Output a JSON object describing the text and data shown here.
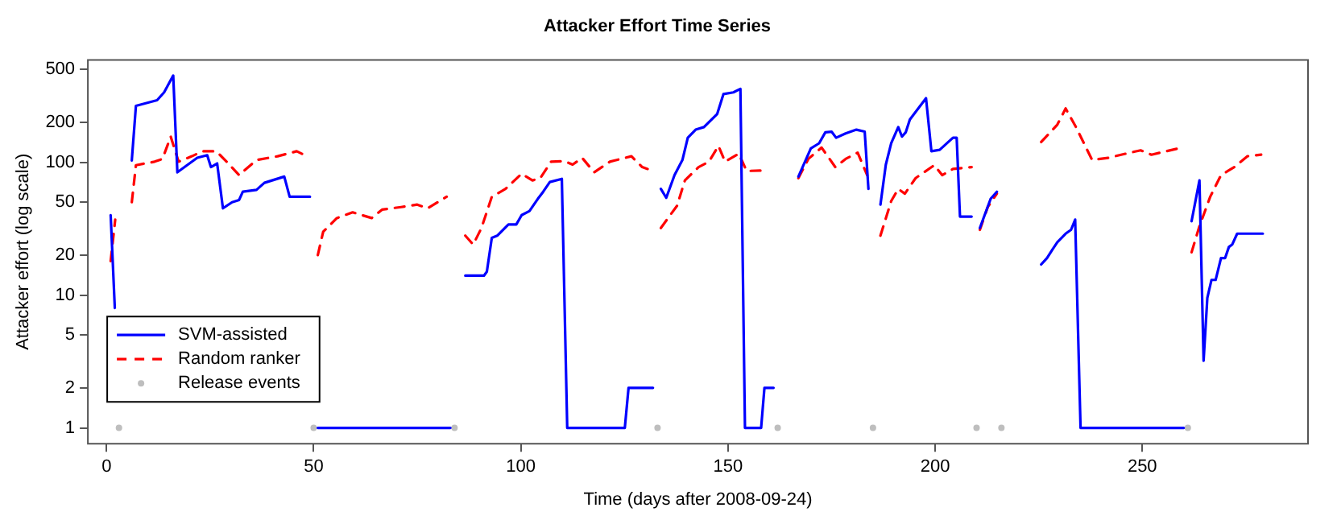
{
  "chart_data": {
    "type": "line",
    "title": "Attacker Effort Time Series",
    "xlabel": "Time (days after 2008-09-24)",
    "ylabel": "Attacker effort (log scale)",
    "log": "y",
    "xlim": [
      -4.5,
      290
    ],
    "xticks": [
      0,
      50,
      100,
      150,
      200,
      250
    ],
    "ylim": [
      0.76,
      590
    ],
    "yticks": [
      1,
      2,
      5,
      10,
      20,
      50,
      100,
      200,
      500
    ],
    "grid": false,
    "legend": "bottom left",
    "series": [
      {
        "name": "SVM-assisted",
        "color": "#0000ff",
        "line_style": "solid",
        "marker": "none",
        "x": [
          1,
          2,
          4,
          6.1,
          7.1,
          12.2,
          13.9,
          16.1,
          17.1,
          21.9,
          24.3,
          25.2,
          26.7,
          28.1,
          30.3,
          32,
          32.9,
          36.2,
          38.1,
          42.9,
          44.2,
          49.1,
          50,
          51,
          83,
          85,
          86.6,
          91.1,
          91.8,
          93,
          94.3,
          97,
          98.9,
          100.2,
          102.1,
          104.1,
          105.4,
          107,
          109.9,
          111.2,
          125.1,
          126,
          131.9,
          133,
          133.8,
          135.1,
          137.1,
          139,
          140.3,
          142.2,
          144.2,
          147.4,
          148.9,
          151.3,
          153,
          154.1,
          158,
          158.8,
          161,
          164,
          167,
          170,
          172,
          173.5,
          175,
          176.1,
          178.4,
          181,
          183,
          183.9,
          185,
          186.8,
          188.1,
          189.4,
          191.1,
          192,
          192.9,
          193.9,
          197.8,
          199.1,
          201.1,
          204.3,
          205.2,
          206,
          208.8,
          209.8,
          210.8,
          213.4,
          214.9,
          220,
          225.6,
          227,
          228.3,
          229.5,
          231.5,
          232.8,
          233.8,
          235.1,
          260,
          261,
          261.9,
          263.8,
          264.8,
          265.7,
          266.7,
          267.7,
          269,
          270,
          270.9,
          271.7,
          272.9,
          279.1
        ],
        "values": [
          40,
          8,
          null,
          103,
          266,
          293,
          336,
          450,
          84,
          108,
          113,
          92,
          98,
          45,
          50,
          52,
          60,
          62,
          70,
          78,
          55,
          55,
          null,
          1,
          1,
          null,
          14,
          14,
          15,
          27,
          28,
          34,
          34,
          40,
          43,
          53,
          60,
          71,
          75,
          1,
          1,
          2,
          2,
          null,
          63,
          54,
          80,
          104,
          153,
          176,
          184,
          231,
          326,
          336,
          357,
          1,
          1,
          2,
          2,
          null,
          78,
          127,
          139,
          168,
          170,
          153,
          165,
          176,
          170,
          63,
          null,
          48,
          96,
          139,
          184,
          156,
          168,
          210,
          304,
          121,
          124,
          153,
          153,
          39,
          39,
          null,
          32,
          53,
          60,
          null,
          17,
          19,
          22,
          25,
          29,
          31,
          37,
          1,
          1,
          null,
          36,
          73,
          3.2,
          9.5,
          13,
          13,
          19,
          19,
          23,
          24,
          29,
          29
        ]
      },
      {
        "name": "Random ranker",
        "color": "#ff0000",
        "line_style": "dashed",
        "marker": "none",
        "x": [
          1,
          2.1,
          4,
          6.1,
          7.1,
          11.6,
          13.5,
          15.5,
          17.4,
          20.6,
          23.2,
          26.5,
          29,
          32,
          36.2,
          41.3,
          45.9,
          48.4,
          50,
          51,
          52.3,
          55.6,
          59.4,
          64,
          66.5,
          71.1,
          75,
          77.5,
          82.1,
          84,
          86.6,
          88.5,
          90.5,
          93,
          96.3,
          100.2,
          102.8,
          104.7,
          107.3,
          110.5,
          112.5,
          114.8,
          117.7,
          121.5,
          126.7,
          129.3,
          130.6,
          132,
          133.8,
          137.7,
          139.6,
          142.9,
          145.4,
          147.7,
          149.3,
          152.6,
          154.5,
          159.7,
          163,
          167,
          169.4,
          172.6,
          175.9,
          178.4,
          181.3,
          183.6,
          185,
          186.8,
          189.4,
          191.1,
          192.7,
          195.3,
          199.8,
          201.7,
          204.3,
          208.8,
          209.8,
          210.8,
          212.7,
          214.9,
          220,
          225.6,
          229.5,
          231.5,
          234,
          237.9,
          241.8,
          247,
          249.6,
          252.2,
          258.6,
          260,
          261.9,
          263.8,
          266.4,
          269,
          272.2,
          275.4,
          278.7
        ],
        "values": [
          18,
          37,
          null,
          50,
          95,
          101,
          106,
          156,
          101,
          111,
          121,
          121,
          101,
          80,
          104,
          111,
          121,
          111,
          null,
          20,
          30,
          38,
          42,
          38,
          44,
          46,
          48,
          45,
          55,
          null,
          28,
          24,
          32,
          55,
          63,
          82,
          73,
          76,
          101,
          102,
          96,
          108,
          84,
          101,
          111,
          92,
          89,
          null,
          32,
          47,
          73,
          92,
          101,
          133,
          101,
          116,
          86,
          87,
          null,
          76,
          106,
          129,
          92,
          106,
          118,
          80,
          null,
          28,
          51,
          63,
          58,
          76,
          95,
          80,
          89,
          92,
          null,
          31,
          46,
          58,
          null,
          142,
          192,
          254,
          184,
          104,
          108,
          118,
          123,
          114,
          127,
          null,
          21,
          33,
          55,
          80,
          92,
          111,
          114
        ]
      },
      {
        "name": "Release events",
        "type": "scatter",
        "color": "#bebebe",
        "marker": "circle",
        "x": [
          3,
          50,
          84,
          133,
          162,
          185,
          210,
          216,
          261
        ],
        "values": [
          1,
          1,
          1,
          1,
          1,
          1,
          1,
          1,
          1
        ]
      }
    ]
  }
}
